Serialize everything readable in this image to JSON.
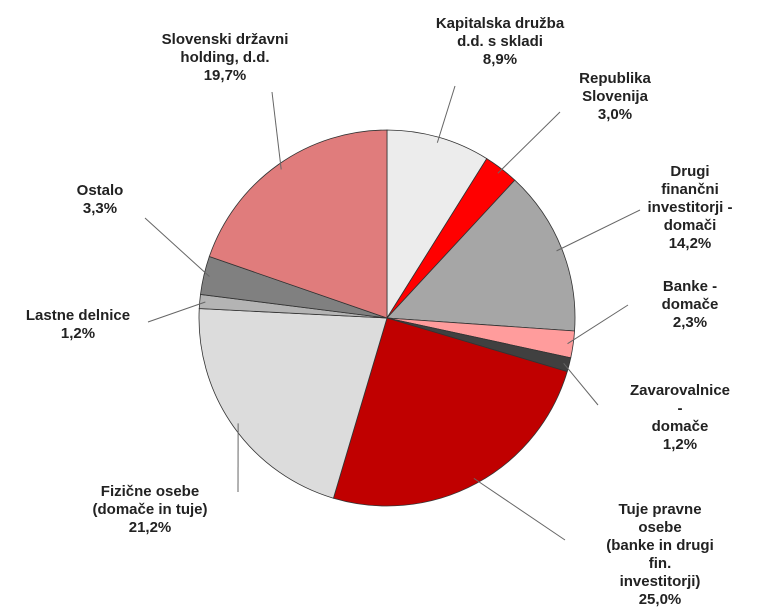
{
  "chart_data": {
    "type": "pie",
    "categories": [
      "Kapitalska družba\nd.d. s skladi",
      "Republika\nSlovenija",
      "Drugi finančni\ninvestitorji -\ndomači",
      "Banke - domače",
      "Zavarovalnice -\ndomače",
      "Tuje pravne osebe\n(banke in drugi fin.\ninvestitorji)",
      "Fizične osebe\n(domače in tuje)",
      "Lastne delnice",
      "Ostalo",
      "Slovenski državni\nholding, d.d."
    ],
    "values": [
      8.9,
      3.0,
      14.2,
      2.3,
      1.2,
      25.0,
      21.2,
      1.2,
      3.3,
      19.7
    ],
    "value_labels": [
      "8,9%",
      "3,0%",
      "14,2%",
      "2,3%",
      "1,2%",
      "25,0%",
      "21,2%",
      "1,2%",
      "3,3%",
      "19,7%"
    ],
    "colors": [
      "#ececec",
      "#ff0000",
      "#a6a6a6",
      "#ff9c9c",
      "#404040",
      "#c00000",
      "#dcdcdc",
      "#b4b4b4",
      "#808080",
      "#e07c7c"
    ]
  }
}
